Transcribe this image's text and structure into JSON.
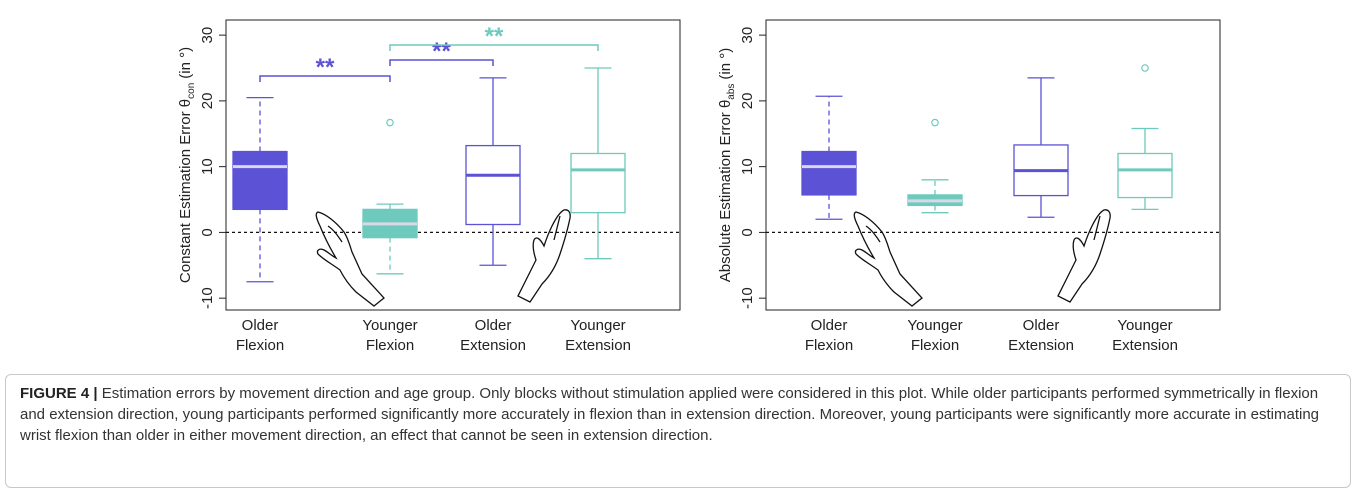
{
  "chart_data": [
    {
      "type": "box",
      "ylabel": "Constant Estimation Error θ",
      "ylabel_sub": "con",
      "ylabel_unit": "(in °)",
      "categories": [
        "Older Flexion",
        "Younger Flexion",
        "Older Extension",
        "Younger Extension"
      ],
      "colors": [
        "#5b52d6",
        "#6dcabd",
        "#5b52d6",
        "#6dcabd"
      ],
      "styles": [
        "filled",
        "filled",
        "outline",
        "outline"
      ],
      "boxes": [
        {
          "low": -7.5,
          "q1": 3.5,
          "median": 10,
          "q3": 12.3,
          "high": 20.5,
          "outliers": []
        },
        {
          "low": -6.3,
          "q1": -0.8,
          "median": 1.3,
          "q3": 3.5,
          "high": 4.3,
          "outliers": [
            16.7
          ]
        },
        {
          "low": -5,
          "q1": 1.2,
          "median": 8.7,
          "q3": 13.2,
          "high": 23.5,
          "outliers": []
        },
        {
          "low": -4,
          "q1": 3,
          "median": 9.5,
          "q3": 12,
          "high": 25,
          "outliers": []
        }
      ],
      "ylim": [
        -11.8,
        32.3
      ],
      "yticks": [
        -10,
        0,
        10,
        20,
        30
      ],
      "hline": 0,
      "annotations": [
        {
          "text": "**",
          "color": "#5b52d6"
        },
        {
          "text": "**",
          "color": "#5b52d6"
        },
        {
          "text": "**",
          "color": "#6dcabd"
        }
      ]
    },
    {
      "type": "box",
      "ylabel": "Absolute Estimation Error θ",
      "ylabel_sub": "abs",
      "ylabel_unit": "(in °)",
      "categories": [
        "Older Flexion",
        "Younger Flexion",
        "Older Extension",
        "Younger Extension"
      ],
      "colors": [
        "#5b52d6",
        "#6dcabd",
        "#5b52d6",
        "#6dcabd"
      ],
      "styles": [
        "filled",
        "filled",
        "outline",
        "outline"
      ],
      "boxes": [
        {
          "low": 2,
          "q1": 5.7,
          "median": 10,
          "q3": 12.3,
          "high": 20.7,
          "outliers": []
        },
        {
          "low": 3,
          "q1": 4.1,
          "median": 4.8,
          "q3": 5.7,
          "high": 8,
          "outliers": [
            16.7
          ]
        },
        {
          "low": 2.3,
          "q1": 5.6,
          "median": 9.4,
          "q3": 13.3,
          "high": 23.5,
          "outliers": []
        },
        {
          "low": 3.5,
          "q1": 5.3,
          "median": 9.5,
          "q3": 12,
          "high": 15.8,
          "outliers": [
            25
          ]
        }
      ],
      "ylim": [
        -11.8,
        32.3
      ],
      "yticks": [
        -10,
        0,
        10,
        20,
        30
      ],
      "hline": 0,
      "annotations": []
    }
  ],
  "caption": {
    "label": "FIGURE 4 |",
    "text": "Estimation errors by movement direction and age group. Only blocks without stimulation applied were considered in this plot. While older participants performed symmetrically in flexion and extension direction, young participants performed significantly more accurately in flexion than in extension direction. Moreover, young participants were significantly more accurate in estimating wrist flexion than older in either movement direction, an effect that cannot be seen in extension direction."
  }
}
